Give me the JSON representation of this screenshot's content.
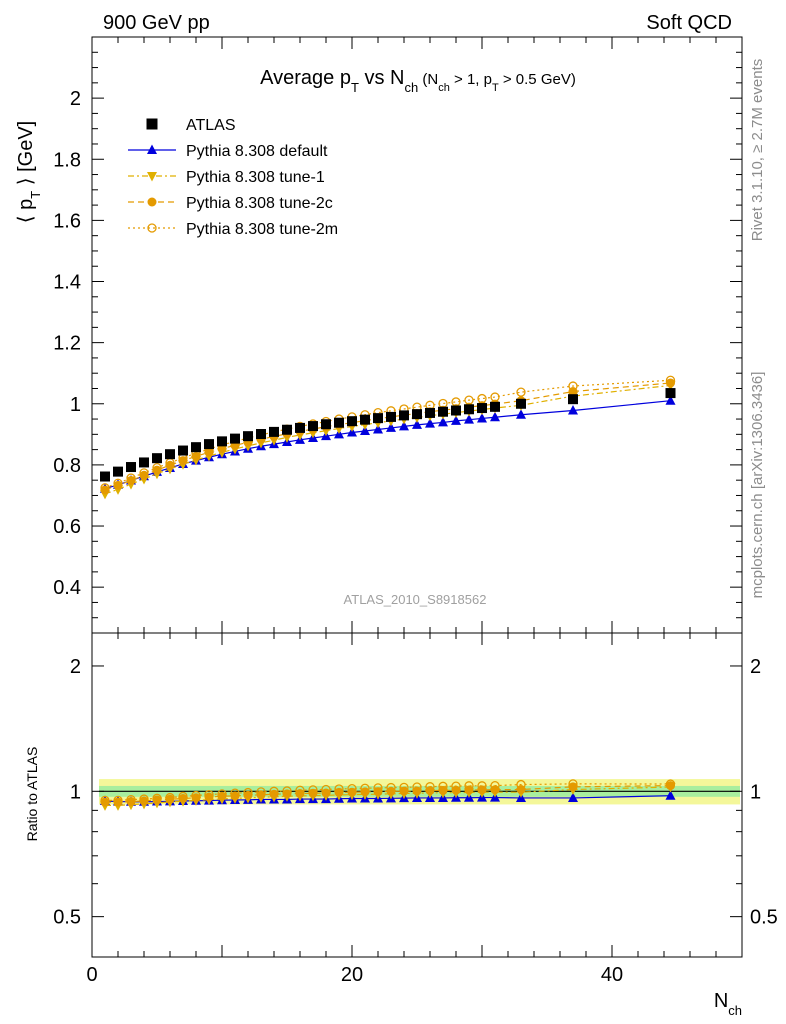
{
  "header": {
    "left": "900 GeV pp",
    "right": "Soft QCD"
  },
  "side_labels": {
    "top": "Rivet 3.1.10, ≥ 2.7M events",
    "bottom": "mcplots.cern.ch [arXiv:1306.3436]"
  },
  "chart_data": [
    {
      "type": "scatter",
      "panel": "main",
      "title": "Average pT vs Nch (Nch > 1, pT > 0.5 GeV)",
      "title_parts": {
        "a": "Average p",
        "a_sub": "T",
        "b": " vs N",
        "b_sub": "ch",
        "c": " (N",
        "c_sub": "ch",
        "d": " > 1, p",
        "d_sub": "T",
        "e": " > 0.5 GeV)"
      },
      "ylabel": "⟨ pT ⟩ [GeV]",
      "ylabel_parts": {
        "a": "⟨ p",
        "a_sub": "T",
        "b": " ⟩  [GeV]"
      },
      "xlabel": "Nch",
      "xlabel_parts": {
        "a": "N",
        "a_sub": "ch"
      },
      "analysis_label": "ATLAS_2010_S8918562",
      "xlim": [
        0,
        50
      ],
      "ylim": [
        0.25,
        2.2
      ],
      "xticks": [
        0,
        20,
        40
      ],
      "yticks": [
        0.4,
        0.6,
        0.8,
        1,
        1.2,
        1.4,
        1.6,
        1.8,
        2
      ],
      "ytick_labels": [
        "0.4",
        "0.6",
        "0.8",
        "1",
        "1.2",
        "1.4",
        "1.6",
        "1.8",
        "2"
      ],
      "legend_position": "top-left",
      "series": [
        {
          "name": "ATLAS",
          "color": "#000000",
          "marker": "square",
          "line": "none",
          "x": [
            1,
            2,
            3,
            4,
            5,
            6,
            7,
            8,
            9,
            10,
            11,
            12,
            13,
            14,
            15,
            16,
            17,
            18,
            19,
            20,
            21,
            22,
            23,
            24,
            25,
            26,
            27,
            28,
            29,
            30,
            31,
            33,
            37,
            44.5
          ],
          "y": [
            0.762,
            0.778,
            0.793,
            0.808,
            0.822,
            0.835,
            0.847,
            0.858,
            0.868,
            0.877,
            0.886,
            0.894,
            0.901,
            0.908,
            0.915,
            0.921,
            0.927,
            0.933,
            0.938,
            0.943,
            0.948,
            0.953,
            0.957,
            0.962,
            0.966,
            0.97,
            0.974,
            0.978,
            0.982,
            0.986,
            0.99,
            1.0,
            1.015,
            1.035
          ]
        },
        {
          "name": "Pythia 8.308 default",
          "color": "#0000dd",
          "marker": "triangle-up",
          "line": "solid",
          "x": [
            1,
            2,
            3,
            4,
            5,
            6,
            7,
            8,
            9,
            10,
            11,
            12,
            13,
            14,
            15,
            16,
            17,
            18,
            19,
            20,
            21,
            22,
            23,
            24,
            25,
            26,
            27,
            28,
            29,
            30,
            31,
            33,
            37,
            44.5
          ],
          "y": [
            0.722,
            0.735,
            0.749,
            0.763,
            0.777,
            0.79,
            0.803,
            0.814,
            0.825,
            0.835,
            0.844,
            0.853,
            0.861,
            0.868,
            0.875,
            0.882,
            0.888,
            0.894,
            0.9,
            0.906,
            0.911,
            0.916,
            0.921,
            0.926,
            0.931,
            0.935,
            0.939,
            0.944,
            0.948,
            0.952,
            0.956,
            0.964,
            0.978,
            1.01
          ]
        },
        {
          "name": "Pythia 8.308 tune-1",
          "color": "#e0b000",
          "marker": "triangle-down",
          "line": "dash-dot",
          "x": [
            1,
            2,
            3,
            4,
            5,
            6,
            7,
            8,
            9,
            10,
            11,
            12,
            13,
            14,
            15,
            16,
            17,
            18,
            19,
            20,
            21,
            22,
            23,
            24,
            25,
            26,
            27,
            28,
            29,
            30,
            31,
            33,
            37,
            44.5
          ],
          "y": [
            0.705,
            0.72,
            0.737,
            0.754,
            0.771,
            0.787,
            0.802,
            0.816,
            0.829,
            0.841,
            0.852,
            0.862,
            0.872,
            0.881,
            0.89,
            0.898,
            0.905,
            0.912,
            0.919,
            0.926,
            0.932,
            0.938,
            0.944,
            0.95,
            0.955,
            0.961,
            0.966,
            0.971,
            0.976,
            0.981,
            0.986,
            0.995,
            1.025,
            1.06
          ]
        },
        {
          "name": "Pythia 8.308 tune-2c",
          "color": "#e49a00",
          "marker": "circle",
          "line": "dashed",
          "x": [
            1,
            2,
            3,
            4,
            5,
            6,
            7,
            8,
            9,
            10,
            11,
            12,
            13,
            14,
            15,
            16,
            17,
            18,
            19,
            20,
            21,
            22,
            23,
            24,
            25,
            26,
            27,
            28,
            29,
            30,
            31,
            33,
            37,
            44.5
          ],
          "y": [
            0.718,
            0.733,
            0.749,
            0.766,
            0.783,
            0.799,
            0.814,
            0.828,
            0.841,
            0.853,
            0.864,
            0.874,
            0.884,
            0.893,
            0.902,
            0.91,
            0.917,
            0.925,
            0.932,
            0.938,
            0.945,
            0.951,
            0.957,
            0.963,
            0.968,
            0.974,
            0.979,
            0.984,
            0.989,
            0.994,
            0.999,
            1.01,
            1.04,
            1.068
          ]
        },
        {
          "name": "Pythia 8.308 tune-2m",
          "color": "#e49a00",
          "marker": "circle-open",
          "line": "dotted",
          "x": [
            1,
            2,
            3,
            4,
            5,
            6,
            7,
            8,
            9,
            10,
            11,
            12,
            13,
            14,
            15,
            16,
            17,
            18,
            19,
            20,
            21,
            22,
            23,
            24,
            25,
            26,
            27,
            28,
            29,
            30,
            31,
            33,
            37,
            44.5
          ],
          "y": [
            0.725,
            0.74,
            0.757,
            0.774,
            0.791,
            0.807,
            0.823,
            0.838,
            0.852,
            0.865,
            0.877,
            0.888,
            0.898,
            0.908,
            0.917,
            0.926,
            0.934,
            0.942,
            0.95,
            0.957,
            0.964,
            0.971,
            0.977,
            0.983,
            0.989,
            0.995,
            1.001,
            1.006,
            1.012,
            1.017,
            1.022,
            1.038,
            1.058,
            1.077
          ]
        }
      ]
    },
    {
      "type": "scatter",
      "panel": "ratio",
      "ylabel": "Ratio to ATLAS",
      "xlim": [
        0,
        50
      ],
      "ylim": [
        0.4,
        2.4
      ],
      "log_scale_y": true,
      "xticks": [
        0,
        20,
        40
      ],
      "xtick_labels": [
        "0",
        "20",
        "40"
      ],
      "yticks": [
        0.5,
        1,
        2
      ],
      "ytick_labels": [
        "0.5",
        "1",
        "2"
      ],
      "reference_band": {
        "inner": 0.03,
        "outer": 0.07,
        "inner_color": "#a8ee9e",
        "outer_color": "#f4f79a"
      },
      "series": [
        {
          "name": "Pythia 8.308 default",
          "color": "#0000dd",
          "marker": "triangle-up",
          "line": "solid",
          "x": [
            1,
            2,
            3,
            4,
            5,
            6,
            7,
            8,
            9,
            10,
            11,
            12,
            13,
            14,
            15,
            16,
            17,
            18,
            19,
            20,
            21,
            22,
            23,
            24,
            25,
            26,
            27,
            28,
            29,
            30,
            31,
            33,
            37,
            44.5
          ],
          "y": [
            0.948,
            0.945,
            0.944,
            0.944,
            0.945,
            0.946,
            0.948,
            0.949,
            0.95,
            0.952,
            0.953,
            0.954,
            0.956,
            0.956,
            0.956,
            0.958,
            0.958,
            0.958,
            0.96,
            0.961,
            0.961,
            0.961,
            0.962,
            0.963,
            0.964,
            0.964,
            0.964,
            0.965,
            0.965,
            0.966,
            0.966,
            0.964,
            0.964,
            0.976
          ]
        },
        {
          "name": "Pythia 8.308 tune-1",
          "color": "#e0b000",
          "marker": "triangle-down",
          "line": "dash-dot",
          "x": [
            1,
            2,
            3,
            4,
            5,
            6,
            7,
            8,
            9,
            10,
            11,
            12,
            13,
            14,
            15,
            16,
            17,
            18,
            19,
            20,
            21,
            22,
            23,
            24,
            25,
            26,
            27,
            28,
            29,
            30,
            31,
            33,
            37,
            44.5
          ],
          "y": [
            0.925,
            0.925,
            0.929,
            0.933,
            0.938,
            0.943,
            0.947,
            0.951,
            0.955,
            0.959,
            0.962,
            0.964,
            0.968,
            0.97,
            0.973,
            0.975,
            0.976,
            0.978,
            0.98,
            0.982,
            0.983,
            0.984,
            0.986,
            0.988,
            0.989,
            0.991,
            0.992,
            0.993,
            0.994,
            0.995,
            0.996,
            0.995,
            1.01,
            1.024
          ]
        },
        {
          "name": "Pythia 8.308 tune-2c",
          "color": "#e49a00",
          "marker": "circle",
          "line": "dashed",
          "x": [
            1,
            2,
            3,
            4,
            5,
            6,
            7,
            8,
            9,
            10,
            11,
            12,
            13,
            14,
            15,
            16,
            17,
            18,
            19,
            20,
            21,
            22,
            23,
            24,
            25,
            26,
            27,
            28,
            29,
            30,
            31,
            33,
            37,
            44.5
          ],
          "y": [
            0.942,
            0.942,
            0.945,
            0.948,
            0.953,
            0.957,
            0.961,
            0.965,
            0.969,
            0.973,
            0.975,
            0.978,
            0.981,
            0.984,
            0.986,
            0.988,
            0.989,
            0.991,
            0.994,
            0.995,
            0.997,
            0.998,
            1.0,
            1.001,
            1.002,
            1.004,
            1.005,
            1.006,
            1.007,
            1.008,
            1.009,
            1.01,
            1.025,
            1.032
          ]
        },
        {
          "name": "Pythia 8.308 tune-2m",
          "color": "#e49a00",
          "marker": "circle-open",
          "line": "dotted",
          "x": [
            1,
            2,
            3,
            4,
            5,
            6,
            7,
            8,
            9,
            10,
            11,
            12,
            13,
            14,
            15,
            16,
            17,
            18,
            19,
            20,
            21,
            22,
            23,
            24,
            25,
            26,
            27,
            28,
            29,
            30,
            31,
            33,
            37,
            44.5
          ],
          "y": [
            0.951,
            0.951,
            0.955,
            0.958,
            0.962,
            0.966,
            0.972,
            0.977,
            0.982,
            0.986,
            0.99,
            0.993,
            0.997,
            1.0,
            1.002,
            1.006,
            1.008,
            1.01,
            1.013,
            1.015,
            1.017,
            1.019,
            1.021,
            1.022,
            1.024,
            1.026,
            1.028,
            1.029,
            1.031,
            1.031,
            1.032,
            1.038,
            1.042,
            1.041
          ]
        }
      ]
    }
  ]
}
